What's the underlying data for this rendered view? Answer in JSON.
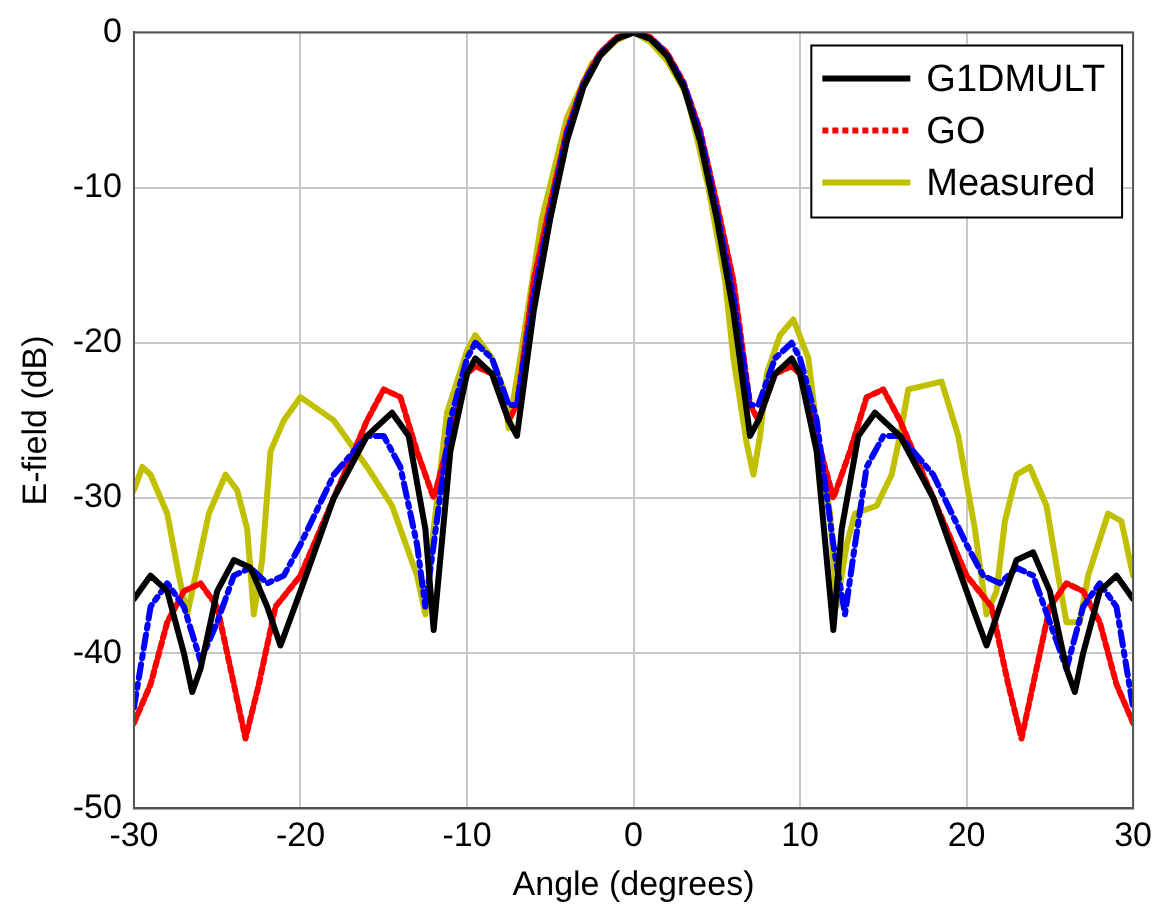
{
  "chart_data": {
    "type": "line",
    "xlabel": "Angle (degrees)",
    "ylabel": "E-field (dB)",
    "xlim": [
      -30,
      30
    ],
    "ylim": [
      -50,
      0
    ],
    "xticks": [
      -30,
      -20,
      -10,
      0,
      10,
      20,
      30
    ],
    "yticks": [
      -50,
      -40,
      -30,
      -20,
      -10,
      0
    ],
    "grid": true,
    "legend": "top right",
    "marker": "none",
    "series": [
      {
        "name": "G1DMULT",
        "color": "#000000",
        "line_style": "solid",
        "x": [
          -30,
          -29,
          -28,
          -27,
          -26.5,
          -26,
          -25,
          -24,
          -23,
          -22,
          -21.2,
          -20,
          -18,
          -16,
          -14.5,
          -13.5,
          -12.5,
          -12,
          -11,
          -10,
          -9.5,
          -8.5,
          -7.5,
          -7,
          -6,
          -5,
          -4,
          -3,
          -2,
          -1,
          0,
          1,
          2,
          3,
          4,
          5,
          6,
          7,
          7.5,
          8.5,
          9.5,
          10,
          11,
          12,
          12.5,
          13.5,
          14.5,
          16,
          18,
          20,
          21.2,
          22,
          23,
          24,
          25,
          26,
          26.5,
          27,
          28,
          29,
          30
        ],
        "values": [
          -36.5,
          -35,
          -36,
          -40,
          -42.5,
          -41,
          -36,
          -34,
          -34.5,
          -37,
          -39.5,
          -36,
          -30,
          -26,
          -24.5,
          -26,
          -32,
          -38.5,
          -27,
          -22,
          -21,
          -22,
          -25,
          -26,
          -18,
          -12,
          -7,
          -3.5,
          -1.5,
          -0.4,
          0,
          -0.4,
          -1.5,
          -3.5,
          -7,
          -12,
          -18,
          -26,
          -25,
          -22,
          -21,
          -22,
          -27,
          -38.5,
          -32,
          -26,
          -24.5,
          -26,
          -30,
          -36,
          -39.5,
          -37,
          -34,
          -33.5,
          -36,
          -41,
          -42.5,
          -40,
          -36,
          -35,
          -36.5
        ]
      },
      {
        "name": null,
        "color": "#0000ff",
        "line_style": "dashed",
        "x": [
          -30,
          -29,
          -28,
          -27,
          -26,
          -25,
          -24,
          -23,
          -22,
          -21,
          -20,
          -18,
          -16,
          -15,
          -14,
          -13,
          -12.5,
          -12,
          -11,
          -10,
          -9.5,
          -8.5,
          -7.5,
          -7,
          -6,
          -5,
          -4,
          -3,
          -2,
          -1,
          0,
          1,
          2,
          3,
          4,
          5,
          6,
          7,
          7.5,
          8.5,
          9.5,
          10,
          11,
          12,
          12.7,
          13.3,
          14,
          15,
          16,
          18,
          20,
          21,
          22,
          23,
          24,
          25,
          26,
          27,
          28,
          29,
          30
        ],
        "values": [
          -43.5,
          -37,
          -35.5,
          -37,
          -40.5,
          -38,
          -35,
          -34.5,
          -35.5,
          -35,
          -33,
          -28.5,
          -26,
          -26,
          -28,
          -33,
          -37,
          -33,
          -25,
          -21,
          -20,
          -21,
          -24,
          -24,
          -17,
          -11.5,
          -6.5,
          -3.3,
          -1.4,
          -0.4,
          0,
          -0.4,
          -1.4,
          -3.3,
          -6.5,
          -11.5,
          -17,
          -24,
          -24,
          -21,
          -20,
          -21,
          -25,
          -33,
          -37.5,
          -33,
          -28,
          -26,
          -26,
          -28.5,
          -33,
          -35,
          -35.5,
          -34.5,
          -35,
          -38,
          -41,
          -37,
          -35.5,
          -37,
          -43.5
        ]
      },
      {
        "name": "GO",
        "color": "#ff0000",
        "line_style": "dotted",
        "x": [
          -30,
          -29,
          -28,
          -27,
          -26,
          -25,
          -24,
          -23.3,
          -22.5,
          -21.5,
          -20,
          -18,
          -16,
          -15,
          -14,
          -13,
          -12,
          -11,
          -10,
          -9.5,
          -8.5,
          -7.5,
          -7,
          -6,
          -5,
          -4,
          -3,
          -2,
          -1,
          0,
          1,
          2,
          3,
          4,
          5,
          6,
          7,
          7.5,
          8.5,
          9.5,
          10,
          11,
          12,
          13,
          14,
          15,
          16,
          18,
          20,
          21.5,
          22.5,
          23.3,
          24,
          25,
          26,
          27,
          28,
          29,
          30
        ],
        "values": [
          -44.5,
          -42,
          -38,
          -36,
          -35.5,
          -37,
          -42,
          -45.5,
          -42,
          -37,
          -35,
          -30,
          -25,
          -23,
          -23.5,
          -27,
          -30,
          -26,
          -22,
          -21.5,
          -22,
          -25,
          -24,
          -16,
          -11,
          -6.3,
          -3.2,
          -1.3,
          -0.3,
          0,
          -0.3,
          -1.3,
          -3.2,
          -6.3,
          -11,
          -16,
          -24,
          -25,
          -22,
          -21.5,
          -22,
          -26,
          -30,
          -27,
          -23.5,
          -23,
          -25,
          -30,
          -35,
          -37,
          -42,
          -45.5,
          -42,
          -37,
          -35.5,
          -36,
          -38,
          -42,
          -44.5
        ]
      },
      {
        "name": "Measured",
        "color": "#c0c000",
        "line_style": "solid",
        "x": [
          -30,
          -29.5,
          -29,
          -28,
          -27.3,
          -26.8,
          -26.3,
          -25.5,
          -24.5,
          -23.8,
          -23.2,
          -22.8,
          -22.3,
          -21.8,
          -21,
          -20,
          -18,
          -16,
          -14.5,
          -13,
          -12.5,
          -12,
          -11.2,
          -10,
          -9.5,
          -8.5,
          -7.8,
          -7.5,
          -6.8,
          -5.5,
          -4,
          -2.5,
          -1,
          0,
          1,
          2,
          3.2,
          4.5,
          5.5,
          6,
          6.8,
          7.2,
          7.6,
          8,
          8.8,
          9.6,
          10.5,
          11,
          11.8,
          12.2,
          12.8,
          13.3,
          14.6,
          15.5,
          16,
          16.5,
          18.5,
          19.5,
          20.5,
          21.2,
          21.8,
          22.3,
          23,
          23.8,
          24.8,
          25.5,
          26,
          26.8,
          27.3,
          28.5,
          29.3,
          30
        ],
        "values": [
          -29.5,
          -28,
          -28.5,
          -31,
          -35,
          -37.5,
          -35,
          -31,
          -28.5,
          -29.5,
          -32,
          -37.5,
          -34,
          -27,
          -25,
          -23.5,
          -25,
          -28,
          -30.5,
          -35,
          -37.5,
          -32,
          -24.5,
          -20.5,
          -19.5,
          -21,
          -23,
          -25.5,
          -21,
          -12,
          -5.5,
          -2,
          -0.5,
          0,
          -0.6,
          -1.8,
          -4,
          -10,
          -16,
          -21,
          -26.5,
          -28.5,
          -26,
          -22,
          -19.5,
          -18.5,
          -21,
          -25.5,
          -31,
          -37,
          -33,
          -31,
          -30.5,
          -28.5,
          -26,
          -23,
          -22.5,
          -26,
          -32,
          -37.5,
          -36,
          -31.5,
          -28.5,
          -28,
          -30.5,
          -35,
          -38,
          -38,
          -35,
          -31,
          -31.5,
          -35
        ]
      }
    ]
  }
}
